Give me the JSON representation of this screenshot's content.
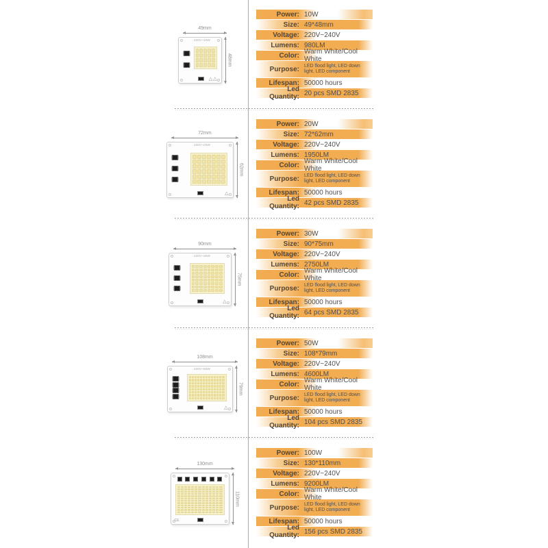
{
  "colors": {
    "orange": "#F2AC52",
    "orange_light": "#F8CE92",
    "label_text": "#514538",
    "value_text": "#4F4F4F",
    "divider_line": "#A8A8A8",
    "separator_dots": "#9E9E9E",
    "pcb_border": "#CDCDCD",
    "led_cell_yellow": "#EFE5AA",
    "led_panel_yellow": "#F6F0CB",
    "dimension_gray": "#8F8F8F"
  },
  "spec_labels": {
    "power": "Power:",
    "size": "Size:",
    "voltage": "Voltage:",
    "lumens": "Lumens:",
    "color": "Color:",
    "purpose": "Purpose:",
    "lifespan": "Lifespan:",
    "led_quantity": "Led Quantity:"
  },
  "sections": [
    {
      "module": {
        "width_label": "49mm",
        "height_label": "48mm",
        "led_cols": 5,
        "led_rows": 4,
        "board_text": "220V~10W",
        "ce_mark": "",
        "warning_triangles": 2
      },
      "specs": {
        "power": "10W",
        "size": "49*48mm",
        "voltage": "220V~240V",
        "lumens": "980LM",
        "color": "Warm White/Cool White",
        "purpose": "LED flood light, LED down light, LED component",
        "lifespan": "50000 hours",
        "led_quantity": "20 pcs SMD 2835"
      }
    },
    {
      "module": {
        "width_label": "72mm",
        "height_label": "62mm",
        "led_cols": 7,
        "led_rows": 6,
        "board_text": "220V~20W",
        "ce_mark": "",
        "warning_triangles": 1
      },
      "specs": {
        "power": "20W",
        "size": "72*62mm",
        "voltage": "220V~240V",
        "lumens": "1950LM",
        "color": "Warm White/Cool White",
        "purpose": "LED flood light, LED down light, LED component",
        "lifespan": "50000 hours",
        "led_quantity": "42 pcs SMD 2835"
      }
    },
    {
      "module": {
        "width_label": "90mm",
        "height_label": "75mm",
        "led_cols": 8,
        "led_rows": 8,
        "board_text": "220V~30W",
        "ce_mark": "",
        "warning_triangles": 1
      },
      "specs": {
        "power": "30W",
        "size": "90*75mm",
        "voltage": "220V~240V",
        "lumens": "2750LM",
        "color": "Warm White/Cool White",
        "purpose": "LED flood light, LED down light, LED component",
        "lifespan": "50000 hours",
        "led_quantity": "64 pcs SMD 2835"
      }
    },
    {
      "module": {
        "width_label": "108mm",
        "height_label": "79mm",
        "led_cols": 13,
        "led_rows": 8,
        "board_text": "220V~50W",
        "ce_mark": "",
        "warning_triangles": 1
      },
      "specs": {
        "power": "50W",
        "size": "108*79mm",
        "voltage": "220V~240V",
        "lumens": "4600LM",
        "color": "Warm White/Cool White",
        "purpose": "LED flood light, LED down light, LED component",
        "lifespan": "50000 hours",
        "led_quantity": "104 pcs SMD 2835"
      }
    },
    {
      "module": {
        "width_label": "130mm",
        "height_label": "110mm",
        "led_cols": 13,
        "led_rows": 12,
        "board_text": "",
        "ce_mark": "CE",
        "warning_triangles": 0
      },
      "specs": {
        "power": "100W",
        "size": "130*110mm",
        "voltage": "220V~240V",
        "lumens": "9200LM",
        "color": "Warm White/Cool White",
        "purpose": "LED flood light, LED down light, LED component",
        "lifespan": "50000 hours",
        "led_quantity": "156 pcs SMD 2835"
      }
    }
  ]
}
